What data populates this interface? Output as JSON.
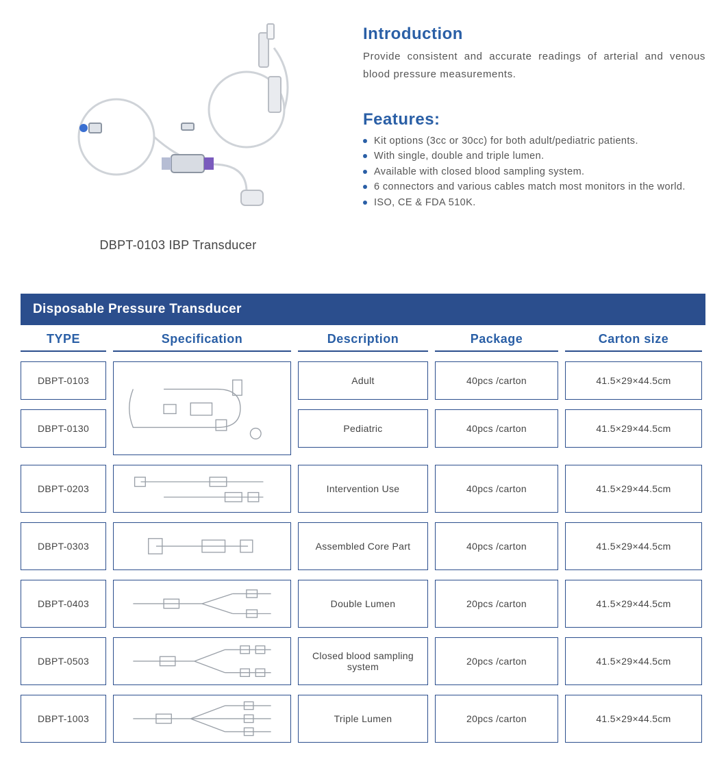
{
  "colors": {
    "heading": "#2a5fa6",
    "bullet": "#2a5fa6",
    "tableHeaderBg": "#2b4e8d",
    "cellBorder": "#2b4e8d",
    "headerUnderline": "#2b4e8d"
  },
  "product": {
    "caption": "DBPT-0103 IBP Transducer"
  },
  "intro": {
    "heading": "Introduction",
    "text": "Provide consistent and accurate readings of arterial and venous blood pressure measurements."
  },
  "features": {
    "heading": "Features:",
    "items": [
      "Kit options (3cc or 30cc) for both adult/pediatric patients.",
      "With single, double and triple lumen.",
      "Available with closed blood sampling system.",
      "6 connectors and various cables match most monitors in the world.",
      "ISO, CE & FDA 510K."
    ]
  },
  "table": {
    "title": "Disposable Pressure Transducer",
    "columns": [
      "TYPE",
      "Specification",
      "Description",
      "Package",
      "Carton  size"
    ],
    "sharedSpecRows": {
      "types": [
        "DBPT-0103",
        "DBPT-0130"
      ],
      "descriptions": [
        "Adult",
        "Pediatric"
      ],
      "packages": [
        "40pcs /carton",
        "40pcs /carton"
      ],
      "cartons": [
        "41.5×29×44.5cm",
        "41.5×29×44.5cm"
      ]
    },
    "rows": [
      {
        "type": "DBPT-0203",
        "description": "Intervention Use",
        "package": "40pcs /carton",
        "carton": "41.5×29×44.5cm"
      },
      {
        "type": "DBPT-0303",
        "description": "Assembled Core Part",
        "package": "40pcs /carton",
        "carton": "41.5×29×44.5cm"
      },
      {
        "type": "DBPT-0403",
        "description": "Double Lumen",
        "package": "20pcs /carton",
        "carton": "41.5×29×44.5cm"
      },
      {
        "type": "DBPT-0503",
        "description": "Closed blood sampling system",
        "package": "20pcs /carton",
        "carton": "41.5×29×44.5cm"
      },
      {
        "type": "DBPT-1003",
        "description": "Triple Lumen",
        "package": "20pcs /carton",
        "carton": "41.5×29×44.5cm"
      }
    ]
  }
}
